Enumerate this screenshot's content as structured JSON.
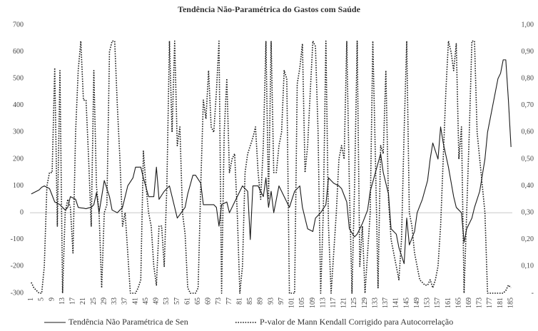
{
  "chart_data": {
    "type": "line",
    "title": "Tendência Não-Paramétrica do Gastos com Saúde",
    "categories": [
      1,
      null,
      null,
      null,
      5,
      null,
      null,
      null,
      9,
      null,
      null,
      null,
      13,
      null,
      null,
      null,
      17,
      null,
      null,
      null,
      21,
      null,
      null,
      null,
      25,
      null,
      null,
      null,
      29,
      null,
      null,
      null,
      33,
      null,
      null,
      null,
      37,
      null,
      null,
      null,
      41,
      null,
      null,
      null,
      45,
      null,
      null,
      null,
      49,
      null,
      null,
      null,
      53,
      null,
      null,
      null,
      57,
      null,
      null,
      null,
      61,
      null,
      null,
      null,
      65,
      null,
      null,
      null,
      69,
      null,
      null,
      null,
      73,
      null,
      null,
      null,
      77,
      null,
      null,
      null,
      81,
      null,
      null,
      null,
      85,
      null,
      null,
      null,
      89,
      null,
      null,
      null,
      93,
      null,
      null,
      null,
      97,
      null,
      null,
      null,
      101,
      null,
      null,
      null,
      105,
      null,
      null,
      null,
      109,
      null,
      null,
      null,
      113,
      null,
      null,
      null,
      117,
      null,
      null,
      null,
      121,
      null,
      null,
      null,
      125,
      null,
      null,
      null,
      129,
      null,
      null,
      null,
      133,
      null,
      null,
      null,
      137,
      null,
      null,
      null,
      141,
      null,
      null,
      null,
      145,
      null,
      null,
      null,
      149,
      null,
      null,
      null,
      153,
      null,
      null,
      null,
      157,
      null,
      null,
      null,
      161,
      null,
      null,
      null,
      165,
      null,
      null,
      null,
      169,
      null,
      null,
      null,
      173,
      null,
      null,
      null,
      177,
      null,
      null,
      null,
      181,
      null,
      null,
      null,
      185
    ],
    "series": [
      {
        "name": "Tendência Não Paramétrica de Sen",
        "color": "#1a1a1a",
        "dash": "solid",
        "values": [
          70,
          75,
          80,
          85,
          95,
          100,
          95,
          90,
          65,
          40,
          35,
          30,
          20,
          10,
          20,
          60,
          55,
          50,
          20,
          18,
          17,
          15,
          18,
          20,
          30,
          75,
          0,
          60,
          120,
          90,
          60,
          10,
          5,
          0,
          10,
          20,
          60,
          100,
          115,
          130,
          170,
          170,
          170,
          130,
          95,
          60,
          60,
          60,
          170,
          50,
          65,
          80,
          90,
          100,
          60,
          20,
          -20,
          -7,
          7,
          20,
          70,
          105,
          140,
          140,
          125,
          110,
          30,
          30,
          30,
          30,
          30,
          20,
          -50,
          30,
          35,
          40,
          0,
          20,
          40,
          60,
          80,
          100,
          90,
          80,
          -100,
          100,
          100,
          100,
          80,
          60,
          130,
          20,
          80,
          0,
          50,
          100,
          80,
          60,
          40,
          20,
          50,
          80,
          90,
          100,
          20,
          -20,
          -60,
          -65,
          -70,
          -20,
          -10,
          0,
          15,
          30,
          130,
          120,
          110,
          105,
          100,
          90,
          65,
          40,
          -60,
          -75,
          -90,
          -80,
          -60,
          -40,
          -15,
          10,
          80,
          115,
          150,
          185,
          220,
          150,
          110,
          70,
          -60,
          -70,
          -80,
          -130,
          -160,
          -190,
          -20,
          -120,
          -95,
          -70,
          0,
          25,
          50,
          85,
          120,
          200,
          260,
          230,
          200,
          320,
          260,
          215,
          170,
          115,
          60,
          20,
          10,
          0,
          -110,
          -60,
          -40,
          -20,
          20,
          50,
          80,
          140,
          200,
          300,
          350,
          400,
          450,
          500,
          520,
          570,
          570,
          420,
          245
        ]
      },
      {
        "name": "P-valor de Mann Kendall Corrigido para Autocorrelação",
        "color": "#1a1a1a",
        "dash": "dotted",
        "axis": "y2",
        "values": [
          0.04,
          0.02,
          0.01,
          0,
          0,
          0.1,
          0.4,
          0.45,
          0.45,
          0.84,
          0.25,
          0.83,
          0,
          0.3,
          0.35,
          0.32,
          0.15,
          0.6,
          0.83,
          0.94,
          0.72,
          0.72,
          0.5,
          0.25,
          0.83,
          0.4,
          0.3,
          0.02,
          0.3,
          0.33,
          0.9,
          0.94,
          0.94,
          0.7,
          0.5,
          0.25,
          0.3,
          0.15,
          0,
          0,
          0,
          0.02,
          0.05,
          0.53,
          0.4,
          0.3,
          0.25,
          0.1,
          0.03,
          0.25,
          0.25,
          0.1,
          0.4,
          0.94,
          0.6,
          0.94,
          0.55,
          0.62,
          0.3,
          0.22,
          0.02,
          0,
          0,
          0,
          0.02,
          0.4,
          0.72,
          0.65,
          0.83,
          0.62,
          0.6,
          0.75,
          0.94,
          0,
          0.6,
          0.8,
          0.45,
          0.5,
          0.52,
          0.3,
          0,
          0.1,
          0.45,
          0.52,
          0.55,
          0.58,
          0.62,
          0.45,
          0.35,
          0.55,
          0.94,
          0.35,
          0.94,
          0.45,
          0.45,
          0.55,
          0.6,
          0.83,
          0.8,
          0,
          0,
          0,
          0.78,
          0.84,
          0.93,
          0.45,
          0.55,
          0.75,
          0.94,
          0.92,
          0.6,
          0,
          0.3,
          0.94,
          0.25,
          0,
          0.15,
          0.3,
          0.5,
          0.55,
          0.5,
          0.94,
          0.4,
          0,
          0.4,
          0.94,
          0.1,
          0.25,
          0,
          0.15,
          0.3,
          0.94,
          0.5,
          0.02,
          0.55,
          0.52,
          0.83,
          0.35,
          0.2,
          0.15,
          0.1,
          0.05,
          0.2,
          0.6,
          0.94,
          0.3,
          0.25,
          0.15,
          0.1,
          0.05,
          0.04,
          0.03,
          0.03,
          0.05,
          0.02,
          0.05,
          0.1,
          0.25,
          0.5,
          0.75,
          0.94,
          0.9,
          0.83,
          0.93,
          0.5,
          0.62,
          0,
          0.3,
          0.6,
          0.94,
          0.94,
          0.6,
          0.5,
          0.4,
          0.3,
          0,
          0,
          0,
          0,
          0,
          0,
          0,
          0.01,
          0.03,
          0.02
        ]
      }
    ],
    "ylim": [
      -300,
      700
    ],
    "yticks": [
      -300,
      -200,
      -100,
      0,
      100,
      200,
      300,
      400,
      500,
      600,
      700
    ],
    "y2lim": [
      0,
      1
    ],
    "y2ticks": [
      {
        "value": 0,
        "label": "-"
      },
      {
        "value": 0.1,
        "label": "0,10"
      },
      {
        "value": 0.2,
        "label": "0,20"
      },
      {
        "value": 0.3,
        "label": "0,30"
      },
      {
        "value": 0.4,
        "label": "0,40"
      },
      {
        "value": 0.5,
        "label": "0,50"
      },
      {
        "value": 0.6,
        "label": "0,60"
      },
      {
        "value": 0.7,
        "label": "0,70"
      },
      {
        "value": 0.8,
        "label": "0,80"
      },
      {
        "value": 0.9,
        "label": "0,90"
      },
      {
        "value": 1,
        "label": "1,00"
      }
    ],
    "legend": "bottom"
  }
}
